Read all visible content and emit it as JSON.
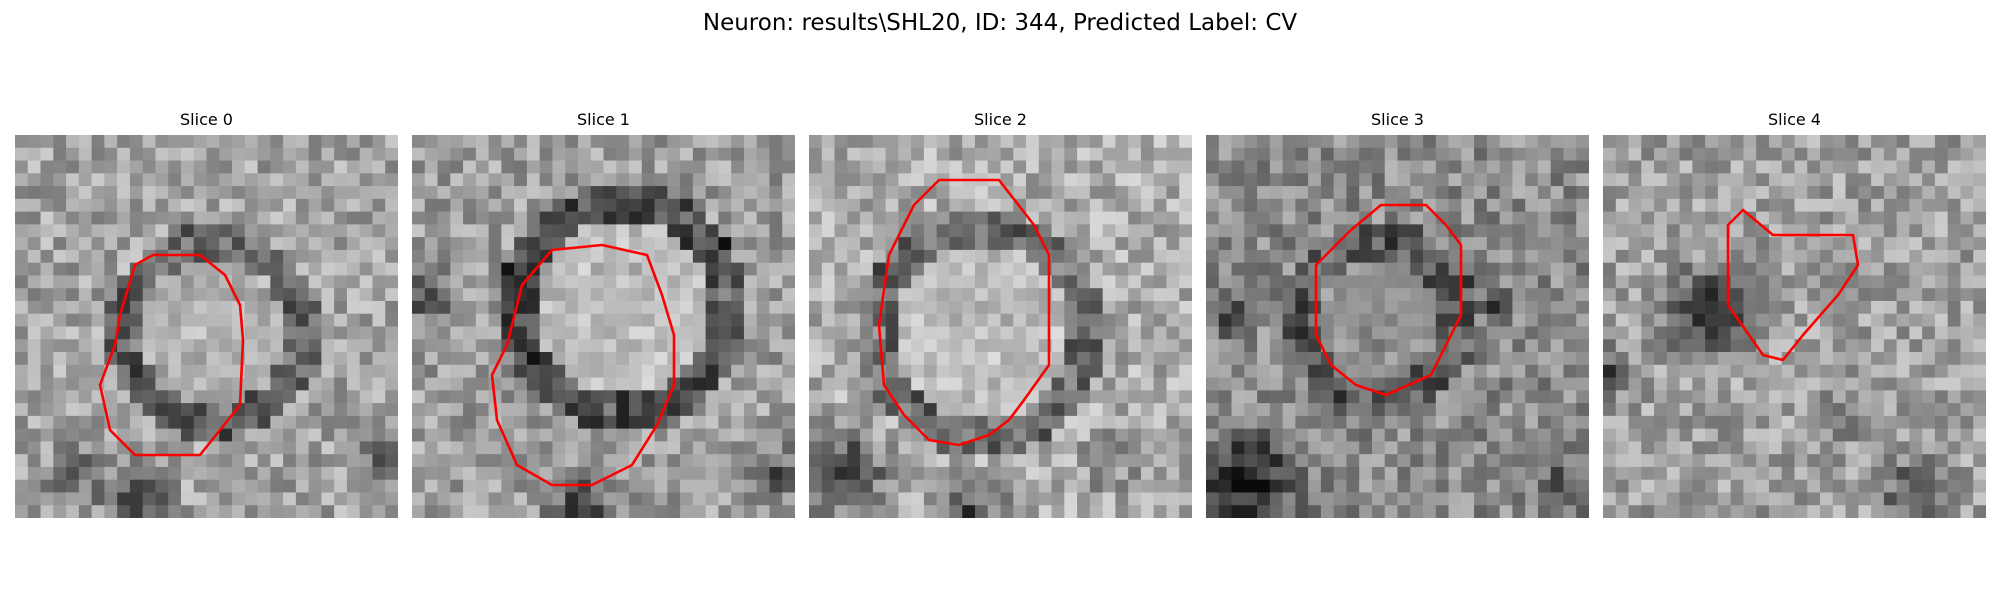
{
  "figure": {
    "title": "Neuron: results\\SHL20, ID: 344, Predicted Label: CV",
    "contour_color": "#ff0000"
  },
  "panels": [
    {
      "title": "Slice 0"
    },
    {
      "title": "Slice 1"
    },
    {
      "title": "Slice 2"
    },
    {
      "title": "Slice 3"
    },
    {
      "title": "Slice 4"
    }
  ]
}
